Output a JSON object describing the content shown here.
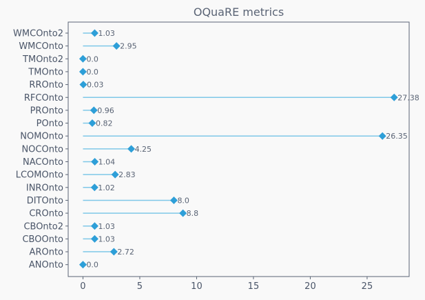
{
  "chart_data": {
    "type": "lollipop",
    "title": "OQuaRE metrics",
    "xlabel": "",
    "ylabel": "",
    "xlim": [
      -1.3,
      28.7
    ],
    "xticks": [
      0,
      5,
      10,
      15,
      20,
      25
    ],
    "grid": false,
    "categories": [
      "WMCOnto2",
      "WMCOnto",
      "TMOnto2",
      "TMOnto",
      "RROnto",
      "RFCOnto",
      "PROnto",
      "POnto",
      "NOMOnto",
      "NOCOnto",
      "NACOnto",
      "LCOMOnto",
      "INROnto",
      "DITOnto",
      "CROnto",
      "CBOnto2",
      "CBOOnto",
      "AROnto",
      "ANOnto"
    ],
    "values": [
      1.03,
      2.95,
      0.0,
      0.0,
      0.03,
      27.38,
      0.96,
      0.82,
      26.35,
      4.25,
      1.04,
      2.83,
      1.02,
      8.0,
      8.8,
      1.03,
      1.03,
      2.72,
      0.0
    ],
    "value_labels": [
      "1.03",
      "2.95",
      "0.0",
      "0.0",
      "0.03",
      "27.38",
      "0.96",
      "0.82",
      "26.35",
      "4.25",
      "1.04",
      "2.83",
      "1.02",
      "8.0",
      "8.8",
      "1.03",
      "1.03",
      "2.72",
      "0.0"
    ],
    "colors": {
      "stem": "#7ec8e8",
      "marker": "#2e9fd8",
      "axis": "#5a6475",
      "text": "#4a5568"
    }
  }
}
